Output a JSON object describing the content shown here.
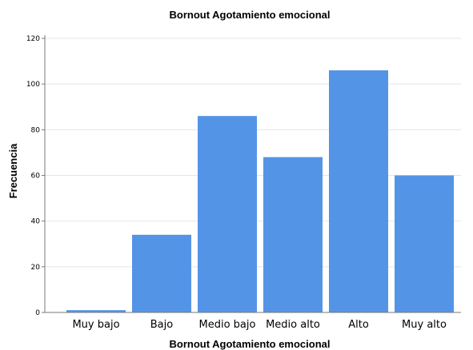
{
  "chart_data": {
    "type": "bar",
    "title": "Bornout Agotamiento emocional",
    "xlabel": "Bornout Agotamiento emocional",
    "ylabel": "Frecuencia",
    "categories": [
      "Muy bajo",
      "Bajo",
      "Medio bajo",
      "Medio alto",
      "Alto",
      "Muy alto"
    ],
    "values": [
      1,
      34,
      86,
      68,
      106,
      60
    ],
    "ylim": [
      0,
      120
    ],
    "yticks": [
      "0",
      "20",
      "40",
      "60",
      "80",
      "100",
      "120"
    ],
    "grid": true,
    "legend": "none",
    "colors": {
      "bar": "#5494e6",
      "grid": "#e4e4e4",
      "axis": "#7a7a7a",
      "text": "#000000"
    }
  }
}
